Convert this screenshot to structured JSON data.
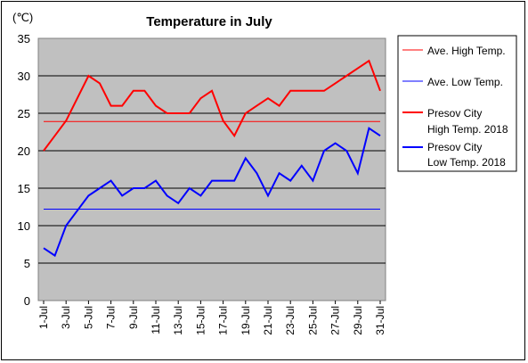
{
  "chart_data": {
    "type": "line",
    "title": "Temperature in July",
    "unit_label": "(℃)",
    "ylim": [
      0,
      35
    ],
    "yticks": [
      0,
      5,
      10,
      15,
      20,
      25,
      30,
      35
    ],
    "grid": true,
    "legend_position": "right",
    "x_tick_labels": [
      "1-Jul",
      "3-Jul",
      "5-Jul",
      "7-Jul",
      "9-Jul",
      "11-Jul",
      "13-Jul",
      "15-Jul",
      "17-Jul",
      "19-Jul",
      "21-Jul",
      "23-Jul",
      "25-Jul",
      "27-Jul",
      "29-Jul",
      "31-Jul"
    ],
    "x": [
      1,
      2,
      3,
      4,
      5,
      6,
      7,
      8,
      9,
      10,
      11,
      12,
      13,
      14,
      15,
      16,
      17,
      18,
      19,
      20,
      21,
      22,
      23,
      24,
      25,
      26,
      27,
      28,
      29,
      30,
      31
    ],
    "series": [
      {
        "name": "Ave. High Temp.",
        "color": "#ff0000",
        "thick": false,
        "values": [
          23.9,
          23.9,
          23.9,
          23.9,
          23.9,
          23.9,
          23.9,
          23.9,
          23.9,
          23.9,
          23.9,
          23.9,
          23.9,
          23.9,
          23.9,
          23.9,
          23.9,
          23.9,
          23.9,
          23.9,
          23.9,
          23.9,
          23.9,
          23.9,
          23.9,
          23.9,
          23.9,
          23.9,
          23.9,
          23.9,
          23.9
        ]
      },
      {
        "name": "Ave. Low Temp.",
        "color": "#0000ff",
        "thick": false,
        "values": [
          12.2,
          12.2,
          12.2,
          12.2,
          12.2,
          12.2,
          12.2,
          12.2,
          12.2,
          12.2,
          12.2,
          12.2,
          12.2,
          12.2,
          12.2,
          12.2,
          12.2,
          12.2,
          12.2,
          12.2,
          12.2,
          12.2,
          12.2,
          12.2,
          12.2,
          12.2,
          12.2,
          12.2,
          12.2,
          12.2,
          12.2
        ]
      },
      {
        "name": "Presov City High Temp. 2018",
        "legend_lines": [
          "Presov City",
          "High Temp. 2018"
        ],
        "color": "#ff0000",
        "thick": true,
        "values": [
          20,
          22,
          24,
          27,
          30,
          29,
          26,
          26,
          28,
          28,
          26,
          25,
          25,
          25,
          27,
          28,
          24,
          22,
          25,
          26,
          27,
          26,
          28,
          28,
          28,
          28,
          29,
          30,
          31,
          32,
          28
        ]
      },
      {
        "name": "Presov City Low Temp. 2018",
        "legend_lines": [
          "Presov City",
          "Low Temp. 2018"
        ],
        "color": "#0000ff",
        "thick": true,
        "values": [
          7,
          6,
          10,
          12,
          14,
          15,
          16,
          14,
          15,
          15,
          16,
          14,
          13,
          15,
          14,
          16,
          16,
          16,
          19,
          17,
          14,
          17,
          16,
          18,
          16,
          20,
          21,
          20,
          17,
          23,
          22
        ]
      }
    ]
  }
}
